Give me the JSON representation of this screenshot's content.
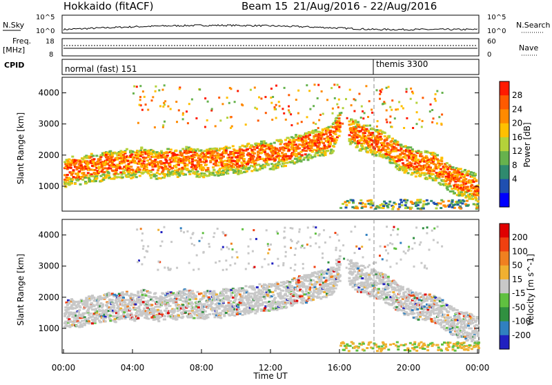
{
  "header": {
    "station": "Hokkaido (fitACF)",
    "beam_label": "Beam 15",
    "date_range": "21/Aug/2016 - 22/Aug/2016"
  },
  "side_labels": {
    "nsky": "N.Sky",
    "freq": "Freq.",
    "freq_unit": "[MHz]",
    "cpid": "CPID",
    "nsearch": "N.Search",
    "nave": "Nave"
  },
  "cpid_modes": [
    {
      "label": "normal (fast) 151",
      "start_hour": 0
    },
    {
      "label": "themis 3300",
      "start_hour": 18
    }
  ],
  "colors": {
    "power": [
      "#0000ff",
      "#1f4fb0",
      "#2f8a6e",
      "#66b24d",
      "#b4d23a",
      "#ffc000",
      "#ff8a00",
      "#ff5a00",
      "#ff1a00"
    ],
    "velocity": [
      "#2020c0",
      "#3080c0",
      "#309040",
      "#60c040",
      "#c8c8c8",
      "#f0b030",
      "#f08020",
      "#f04010",
      "#e00000"
    ]
  },
  "chart_data": [
    {
      "type": "line",
      "name": "nsky-nsearch",
      "ylabel_left": "N.Sky",
      "ylabel_right": "N.Search",
      "y_ticks_left": [
        "10^5",
        "10^0"
      ],
      "y_ticks_right": [
        "10^5",
        "10^0"
      ],
      "xlim": [
        0,
        24
      ]
    },
    {
      "type": "line",
      "name": "freq-nave",
      "ylabel_left": "Freq. [MHz]",
      "ylabel_right": "Nave",
      "y_ticks_left": [
        "18",
        "8"
      ],
      "y_ticks_right": [
        "60",
        "0"
      ],
      "xlim": [
        0,
        24
      ]
    },
    {
      "type": "heatmap",
      "name": "power",
      "ylabel": "Slant Range [km]",
      "ylim": [
        200,
        4500
      ],
      "yticks": [
        1000,
        2000,
        3000,
        4000
      ],
      "colorbar_label": "Power [dB]",
      "colorbar_ticks": [
        "28",
        "24",
        "20",
        "16",
        "12",
        "8",
        "4"
      ],
      "xlim": [
        0,
        24
      ]
    },
    {
      "type": "heatmap",
      "name": "velocity",
      "ylabel": "Slant Range [km]",
      "ylim": [
        200,
        4500
      ],
      "yticks": [
        1000,
        2000,
        3000,
        4000
      ],
      "colorbar_label": "Velocity [m s^-1]",
      "colorbar_ticks": [
        "200",
        "100",
        "50",
        "15",
        "-15",
        "-50",
        "-100",
        "-200"
      ],
      "xlim": [
        0,
        24
      ]
    }
  ],
  "xaxis": {
    "ticks": [
      "00:00",
      "04:00",
      "08:00",
      "12:00",
      "16:00",
      "20:00",
      "00:00"
    ],
    "tick_hours": [
      0,
      4,
      8,
      12,
      16,
      20,
      24
    ],
    "label": "Time UT"
  },
  "range_traces": [
    {
      "hours": [
        0,
        0.5,
        1,
        1.5,
        2,
        2.5,
        3,
        3.5,
        4,
        4.5,
        5,
        5.5,
        6,
        6.5,
        7,
        7.5,
        8,
        8.5,
        9,
        9.5,
        10,
        10.5,
        11,
        11.5,
        12,
        12.5,
        13,
        13.5,
        14,
        14.5,
        15,
        15.5,
        16
      ],
      "ranges": [
        1500,
        1600,
        1550,
        1700,
        1650,
        1800,
        1700,
        1850,
        1750,
        1900,
        1800,
        1750,
        1850,
        1800,
        1900,
        1850,
        1800,
        1900,
        1850,
        1950,
        1900,
        2000,
        2000,
        2100,
        2050,
        2150,
        2200,
        2300,
        2350,
        2450,
        2500,
        2600,
        3100
      ]
    },
    {
      "hours": [
        16.5,
        17,
        17.5,
        18,
        18.5,
        19,
        19.5,
        20,
        20.5,
        21,
        21.5,
        22,
        22.5,
        23,
        23.5,
        24
      ],
      "ranges": [
        2900,
        2700,
        2600,
        2500,
        2400,
        2200,
        2000,
        1900,
        1800,
        1750,
        1700,
        1500,
        1300,
        1200,
        1100,
        1000
      ]
    }
  ]
}
